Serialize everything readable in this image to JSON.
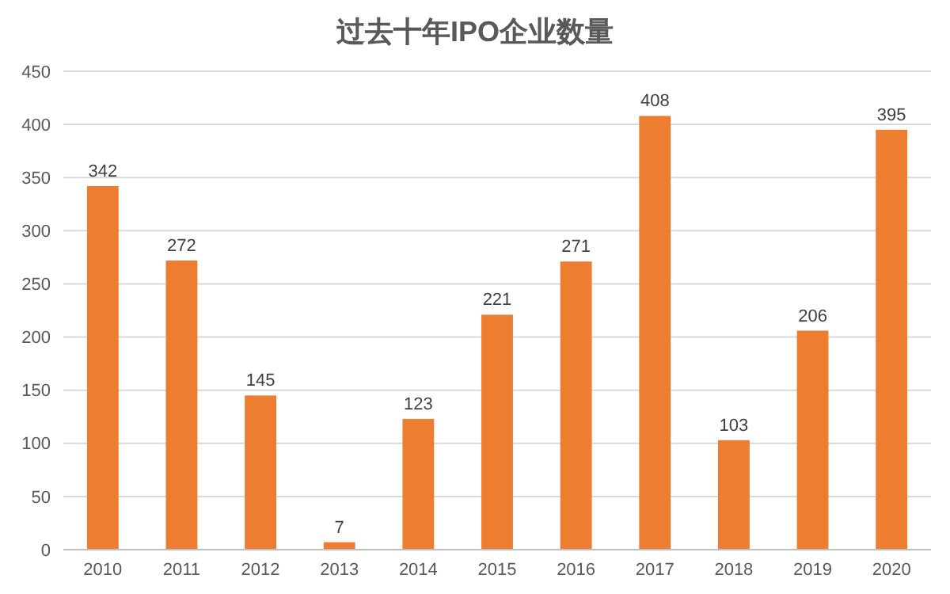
{
  "chart_data": {
    "type": "bar",
    "title": "过去十年IPO企业数量",
    "categories": [
      "2010",
      "2011",
      "2012",
      "2013",
      "2014",
      "2015",
      "2016",
      "2017",
      "2018",
      "2019",
      "2020"
    ],
    "values": [
      342,
      272,
      145,
      7,
      123,
      221,
      271,
      408,
      103,
      206,
      395
    ],
    "color": "#ed7d31",
    "ylim": [
      0,
      450
    ],
    "yticks": [
      0,
      50,
      100,
      150,
      200,
      250,
      300,
      350,
      400,
      450
    ],
    "grid": "y",
    "data_labels": true
  }
}
